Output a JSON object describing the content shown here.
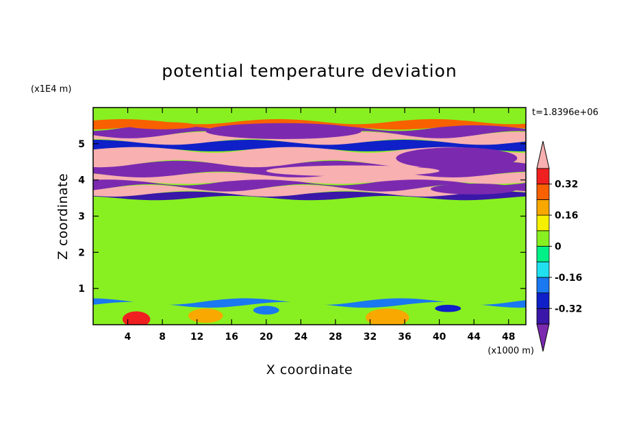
{
  "chart_data": {
    "type": "heatmap",
    "title": "potential temperature deviation",
    "time_label": "t=1.8396e+06",
    "xlabel": "X coordinate",
    "ylabel": "Z coordinate",
    "x_unit": "(x1000 m)",
    "y_unit": "(x1E4 m)",
    "xlim": [
      0,
      50
    ],
    "ylim": [
      0,
      6
    ],
    "x_ticks": [
      4,
      8,
      12,
      16,
      20,
      24,
      28,
      32,
      36,
      40,
      44,
      48
    ],
    "y_ticks": [
      1,
      2,
      3,
      4,
      5
    ],
    "colorbar": {
      "levels": [
        -0.4,
        -0.32,
        -0.24,
        -0.16,
        -0.08,
        0,
        0.08,
        0.16,
        0.24,
        0.32,
        0.4
      ],
      "colors": [
        "#7b2ab0",
        "#3a17a8",
        "#0f20c8",
        "#1a78f0",
        "#20e0f0",
        "#00f088",
        "#88f020",
        "#f4f000",
        "#f8a800",
        "#f86000",
        "#f02020",
        "#f8b0b0"
      ],
      "tick_labels": [
        "0.32",
        "0.16",
        "0",
        "-0.16",
        "-0.32"
      ],
      "tick_values": [
        0.32,
        0.16,
        0,
        -0.16,
        -0.32
      ]
    },
    "bands": [
      {
        "z": [
          0.0,
          0.55
        ],
        "level": 0.04
      },
      {
        "z": [
          0.55,
          0.65
        ],
        "level": -0.2
      },
      {
        "z": [
          0.65,
          1.4
        ],
        "level": 0.03
      },
      {
        "z": [
          1.4,
          2.2
        ],
        "level": 0.05
      },
      {
        "z": [
          2.2,
          3.0
        ],
        "level": 0.03
      },
      {
        "z": [
          3.0,
          3.5
        ],
        "level": 0.05
      },
      {
        "z": [
          3.5,
          3.62
        ],
        "level": -0.35
      },
      {
        "z": [
          3.62,
          3.78
        ],
        "level": 0.45
      },
      {
        "z": [
          3.78,
          3.95
        ],
        "level": -0.45
      },
      {
        "z": [
          3.95,
          4.15
        ],
        "level": 0.45
      },
      {
        "z": [
          4.15,
          4.45
        ],
        "level": -0.45
      },
      {
        "z": [
          4.45,
          4.85
        ],
        "level": 0.45
      },
      {
        "z": [
          4.85,
          5.05
        ],
        "level": -0.3
      },
      {
        "z": [
          5.05,
          5.25
        ],
        "level": 0.45
      },
      {
        "z": [
          5.25,
          5.45
        ],
        "level": -0.45
      },
      {
        "z": [
          5.45,
          5.62
        ],
        "level": 0.3
      },
      {
        "z": [
          5.62,
          6.0
        ],
        "level": 0.05
      }
    ],
    "blobs": [
      {
        "x": 5,
        "z": 0.15,
        "rx": 1.6,
        "rz": 0.22,
        "level": 0.35
      },
      {
        "x": 13,
        "z": 0.25,
        "rx": 2.0,
        "rz": 0.2,
        "level": 0.2
      },
      {
        "x": 20,
        "z": 0.4,
        "rx": 1.5,
        "rz": 0.12,
        "level": -0.16
      },
      {
        "x": 34,
        "z": 0.2,
        "rx": 2.5,
        "rz": 0.25,
        "level": 0.24
      },
      {
        "x": 41,
        "z": 0.45,
        "rx": 1.5,
        "rz": 0.1,
        "level": -0.3
      },
      {
        "x": 22,
        "z": 5.35,
        "rx": 9.0,
        "rz": 0.22,
        "level": -0.45
      },
      {
        "x": 42,
        "z": 4.6,
        "rx": 7.0,
        "rz": 0.3,
        "level": -0.45
      },
      {
        "x": 30,
        "z": 4.25,
        "rx": 10.0,
        "rz": 0.15,
        "level": 0.45
      },
      {
        "x": 8,
        "z": 5.5,
        "rx": 4.0,
        "rz": 0.1,
        "level": 0.32
      },
      {
        "x": 44,
        "z": 3.75,
        "rx": 5.0,
        "rz": 0.15,
        "level": -0.45
      }
    ]
  }
}
